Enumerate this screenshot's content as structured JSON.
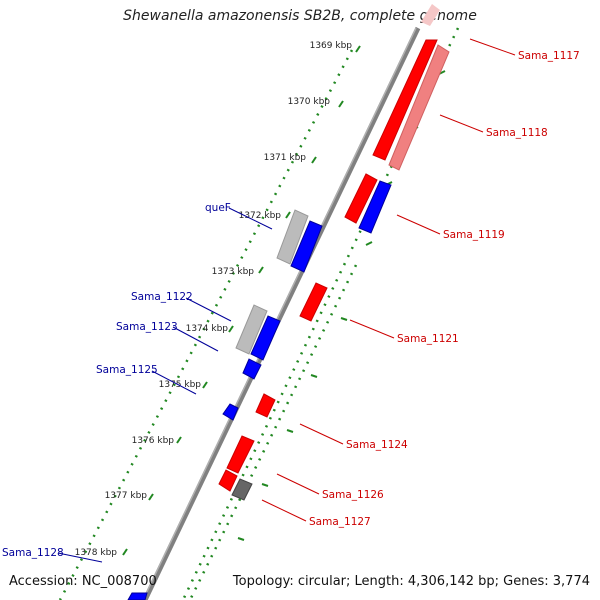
{
  "title": "Shewanella amazonensis SB2B, complete genome",
  "footer": {
    "accession": "Accession: NC_008700",
    "topology": "Topology: circular; Length: 4,306,142 bp; Genes: 3,774"
  },
  "colors": {
    "forward_strand": "#ff0000",
    "forward_strand_light": "#f08080",
    "reverse_strand": "#0000ff",
    "rna_or_other": "#bbbbbb",
    "pseudo": "#666666",
    "backbone": "#808080",
    "tick_dots": "#228822",
    "forward_label": "#cc0000",
    "reverse_label": "#000099"
  },
  "kbp_ticks": [
    "1369 kbp",
    "1370 kbp",
    "1371 kbp",
    "1372 kbp",
    "1373 kbp",
    "1374 kbp",
    "1375 kbp",
    "1376 kbp",
    "1377 kbp",
    "1378 kbp"
  ],
  "gene_labels": {
    "sama_1117": "Sama_1117",
    "sama_1118": "Sama_1118",
    "sama_1119": "Sama_1119",
    "sama_1121": "Sama_1121",
    "sama_1124": "Sama_1124",
    "sama_1126": "Sama_1126",
    "sama_1127": "Sama_1127",
    "quef": "queF",
    "sama_1122": "Sama_1122",
    "sama_1123": "Sama_1123",
    "sama_1125": "Sama_1125",
    "sama_1128": "Sama_1128"
  }
}
